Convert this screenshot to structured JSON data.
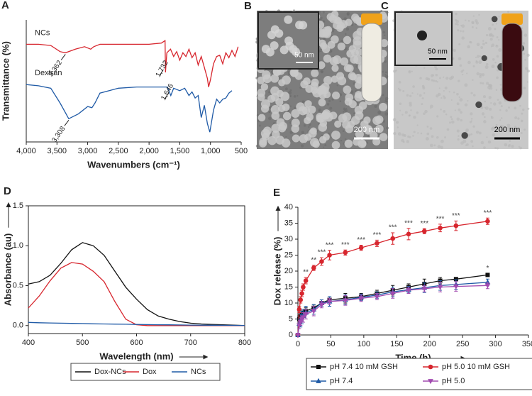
{
  "chart_data": [
    {
      "panel": "A",
      "type": "line",
      "xlabel": "Wavenumbers (cm⁻¹)",
      "ylabel": "Transmittance (%)",
      "xlim": [
        4000,
        500
      ],
      "xticks": [
        {
          "value": 4000,
          "label": "4,000"
        },
        {
          "value": 3500,
          "label": "3,500"
        },
        {
          "value": 3000,
          "label": "3,000"
        },
        {
          "value": 2500,
          "label": "2,500"
        },
        {
          "value": 2000,
          "label": "2,000"
        },
        {
          "value": 1500,
          "label": "1,500"
        },
        {
          "value": 1000,
          "label": "1,000"
        },
        500
      ],
      "ylim": [
        0,
        100
      ],
      "legend": "inline",
      "series": [
        {
          "name": "NCs",
          "color": "#d7262e",
          "x": [
            4000,
            3800,
            3600,
            3450,
            3362,
            3200,
            3050,
            2950,
            2900,
            2800,
            2500,
            2200,
            2000,
            1800,
            1740,
            1732,
            1710,
            1650,
            1600,
            1550,
            1500,
            1450,
            1400,
            1350,
            1300,
            1250,
            1200,
            1150,
            1100,
            1050,
            1030,
            1000,
            950,
            900,
            850,
            800,
            750,
            700,
            650,
            600,
            550
          ],
          "values": [
            80,
            80,
            79,
            74,
            73,
            76,
            78,
            76,
            78,
            80,
            80,
            80,
            80,
            81,
            83,
            57,
            73,
            76,
            70,
            74,
            67,
            73,
            70,
            76,
            69,
            73,
            63,
            70,
            61,
            52,
            45,
            51,
            64,
            70,
            71,
            64,
            73,
            69,
            75,
            70,
            78
          ],
          "annotations": [
            {
              "value": 3362,
              "label": "3,362"
            },
            {
              "value": 1732,
              "label": "1,732"
            }
          ]
        },
        {
          "name": "Dextran",
          "color": "#1f5aa6",
          "x": [
            4000,
            3800,
            3600,
            3450,
            3308,
            3150,
            3000,
            2930,
            2880,
            2800,
            2500,
            2200,
            2000,
            1800,
            1700,
            1646,
            1600,
            1500,
            1420,
            1350,
            1300,
            1250,
            1200,
            1150,
            1100,
            1050,
            1010,
            950,
            900,
            850,
            800,
            750,
            700,
            650
          ],
          "values": [
            47,
            46,
            44,
            32,
            19,
            23,
            29,
            28,
            32,
            40,
            44,
            45,
            45,
            45,
            45,
            38,
            44,
            42,
            44,
            38,
            41,
            36,
            38,
            20,
            30,
            15,
            8,
            26,
            35,
            32,
            35,
            36,
            40,
            42
          ],
          "annotations": [
            {
              "value": 3308,
              "label": "3,308"
            },
            {
              "value": 1646,
              "label": "1,646"
            }
          ]
        }
      ]
    },
    {
      "panel": "D",
      "type": "line",
      "xlabel": "Wavelength (nm)",
      "ylabel": "Absorbance (au)",
      "x": [
        400,
        420,
        440,
        460,
        480,
        500,
        520,
        540,
        560,
        580,
        600,
        620,
        640,
        660,
        680,
        700,
        720,
        740,
        760,
        780,
        800
      ],
      "xlim": [
        400,
        800
      ],
      "xticks": [
        400,
        500,
        600,
        700,
        800
      ],
      "ylim": [
        -0.1,
        1.5
      ],
      "yticks": [
        {
          "value": 0,
          "label": "0.0"
        },
        {
          "value": 0.5,
          "label": "0.5"
        },
        {
          "value": 1,
          "label": "1.0"
        },
        {
          "value": 1.5,
          "label": "1.5"
        }
      ],
      "legend": "bottom",
      "legend_columns": 3,
      "series": [
        {
          "name": "Dox-NCs",
          "color": "#111111",
          "values": [
            0.52,
            0.55,
            0.63,
            0.78,
            0.95,
            1.04,
            1.0,
            0.88,
            0.68,
            0.48,
            0.33,
            0.2,
            0.12,
            0.08,
            0.05,
            0.03,
            0.02,
            0.015,
            0.01,
            0.005,
            0
          ]
        },
        {
          "name": "Dox",
          "color": "#d7262e",
          "values": [
            0.22,
            0.37,
            0.56,
            0.72,
            0.79,
            0.77,
            0.68,
            0.55,
            0.3,
            0.08,
            0.01,
            0,
            0,
            0,
            0,
            0,
            0,
            0,
            0,
            0,
            0
          ]
        },
        {
          "name": "NCs",
          "color": "#1f5aa6",
          "values": [
            0.04,
            0.035,
            0.032,
            0.03,
            0.027,
            0.025,
            0.022,
            0.02,
            0.018,
            0.016,
            0.014,
            0.012,
            0.01,
            0.009,
            0.008,
            0.006,
            0.005,
            0.004,
            0.003,
            0.002,
            0.001
          ]
        }
      ]
    },
    {
      "panel": "E",
      "type": "line",
      "xlabel": "Time (h)",
      "ylabel": "Dox release (%)",
      "x": [
        0,
        2,
        4,
        6,
        8,
        12,
        24,
        36,
        48,
        72,
        96,
        120,
        144,
        168,
        192,
        216,
        240,
        288
      ],
      "xlim": [
        0,
        350
      ],
      "xticks": [
        0,
        50,
        100,
        150,
        200,
        250,
        300,
        350
      ],
      "ylim": [
        0,
        40
      ],
      "yticks": [
        0,
        5,
        10,
        15,
        20,
        25,
        30,
        35,
        40
      ],
      "legend": "bottom",
      "legend_columns": 2,
      "series": [
        {
          "name": "pH 7.4 10 mM GSH",
          "color": "#111111",
          "marker": "square",
          "values": [
            0,
            5,
            6,
            6.5,
            7,
            7.5,
            8.5,
            10,
            11,
            11.5,
            12,
            13,
            14,
            15,
            16,
            17,
            17.5,
            18.8
          ],
          "errors": [
            0,
            1,
            1,
            1,
            1,
            1,
            1,
            1,
            1,
            1.5,
            1,
            1,
            1.5,
            1,
            1.5,
            1,
            0.5,
            0.5
          ],
          "significance": [
            null,
            null,
            null,
            null,
            null,
            null,
            null,
            null,
            null,
            null,
            null,
            null,
            null,
            null,
            null,
            null,
            null,
            "*"
          ]
        },
        {
          "name": "pH 5.0 10 mM GSH",
          "color": "#d7262e",
          "marker": "circle",
          "values": [
            0,
            8,
            11,
            13,
            15,
            17,
            21,
            23,
            25,
            25.8,
            27.3,
            28.7,
            30.2,
            31.6,
            32.5,
            33.5,
            34.2,
            35.6
          ],
          "errors": [
            0,
            1,
            1,
            1,
            1,
            1,
            0.8,
            1.2,
            1.5,
            0.8,
            0.8,
            1,
            1.8,
            1.8,
            0.8,
            1.2,
            1.5,
            1
          ],
          "significance": [
            null,
            null,
            null,
            null,
            null,
            "**",
            "**",
            "***",
            "***",
            "***",
            "***",
            "***",
            "***",
            "***",
            "***",
            "***",
            "***",
            "***"
          ]
        },
        {
          "name": "pH 7.4",
          "color": "#1f5aa6",
          "marker": "triangle",
          "values": [
            0,
            3.5,
            4.5,
            5.5,
            6,
            7,
            8,
            10,
            10.5,
            11,
            11.8,
            12.5,
            13.5,
            14.2,
            14.8,
            15.5,
            15.8,
            16.5
          ],
          "errors": [
            0,
            1.5,
            2,
            2,
            2,
            2,
            1.5,
            1,
            1.5,
            1.5,
            1,
            1,
            1.5,
            1,
            1.5,
            1.5,
            1.5,
            1
          ]
        },
        {
          "name": "pH 5.0",
          "color": "#a24bb0",
          "marker": "triangle-down",
          "values": [
            0,
            3,
            4,
            5,
            5.5,
            6.5,
            7.5,
            9.5,
            10.5,
            10.8,
            11.5,
            12,
            13,
            14,
            14.5,
            15,
            15.2,
            15.5
          ],
          "errors": [
            0,
            1,
            1,
            1,
            1.5,
            1.5,
            1.5,
            1,
            1,
            1.5,
            1,
            1,
            1.5,
            1,
            1,
            1.5,
            1.5,
            1
          ]
        }
      ]
    }
  ],
  "images": [
    {
      "panel": "B",
      "inset_scale": "50 nm",
      "scale_bar": "200 nm"
    },
    {
      "panel": "C",
      "inset_scale": "50 nm",
      "scale_bar": "200 nm"
    }
  ]
}
